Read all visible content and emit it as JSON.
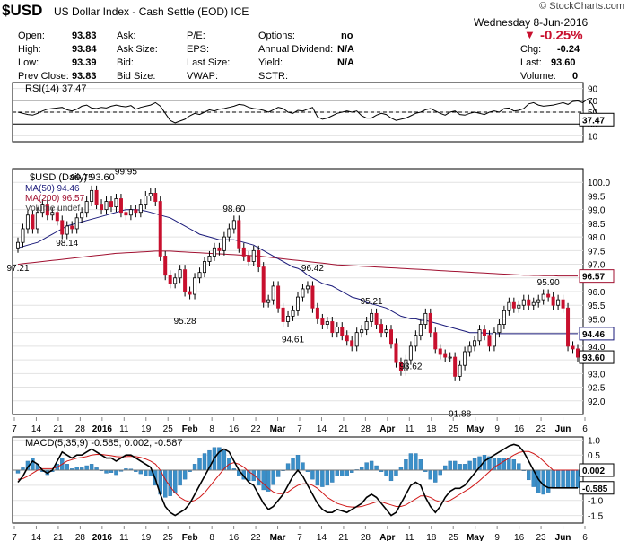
{
  "header": {
    "symbol": "$USD",
    "description": "US Dollar Index - Cash Settle (EOD)",
    "exchange": "ICE",
    "watermark": "© StockCharts.com",
    "date": "Wednesday  8-Jun-2016",
    "change_pct": "-0.25%",
    "open_label": "Open:",
    "open": "93.83",
    "high_label": "High:",
    "high": "93.84",
    "low_label": "Low:",
    "low": "93.39",
    "prevclose_label": "Prev Close:",
    "prevclose": "93.83",
    "ask_label": "Ask:",
    "asksize_label": "Ask Size:",
    "bid_label": "Bid:",
    "bidsize_label": "Bid Size:",
    "pe_label": "P/E:",
    "eps_label": "EPS:",
    "lastsize_label": "Last Size:",
    "vwap_label": "VWAP:",
    "options_label": "Options:",
    "options": "no",
    "div_label": "Annual Dividend:",
    "div": "N/A",
    "yield_label": "Yield:",
    "yield": "N/A",
    "sctr_label": "SCTR:",
    "chg_label": "Chg:",
    "chg": "-0.24",
    "last_label": "Last:",
    "last": "93.60",
    "volume_label": "Volume:",
    "volume": "0"
  },
  "colors": {
    "up": "#ffffff",
    "down": "#c8102e",
    "ma50": "#1a1a7a",
    "ma200": "#a01030",
    "hist": "#3a8fc8",
    "signal": "#d01818"
  },
  "chart_data": [
    {
      "type": "line",
      "panel": "rsi",
      "title": "RSI(14) 37.47",
      "ylim": [
        0,
        100
      ],
      "tick_labels": [
        "10",
        "30",
        "50",
        "70",
        "90"
      ],
      "levels": [
        30,
        50,
        70
      ],
      "last_label": "37.47",
      "values": [
        50,
        48,
        46,
        45,
        48,
        52,
        55,
        56,
        57,
        58,
        54,
        52,
        55,
        60,
        62,
        57,
        56,
        58,
        57,
        60,
        62,
        60,
        59,
        61,
        55,
        58,
        60,
        62,
        66,
        60,
        48,
        36,
        32,
        35,
        38,
        44,
        48,
        46,
        50,
        54,
        52,
        55,
        56,
        58,
        60,
        63,
        62,
        58,
        56,
        55,
        53,
        50,
        54,
        58,
        56,
        50,
        48,
        53,
        52,
        55,
        58,
        42,
        38,
        40,
        44,
        48,
        50,
        52,
        50,
        52,
        44,
        40,
        40,
        45,
        48,
        46,
        40,
        36,
        38,
        40,
        44,
        48,
        50,
        54,
        56,
        52,
        48,
        45,
        50,
        52,
        46,
        45,
        48,
        50,
        48,
        46,
        50,
        52,
        50,
        56,
        57,
        52,
        53,
        56,
        64,
        66,
        62,
        60,
        61,
        62,
        64,
        66,
        63,
        68,
        69,
        66,
        72,
        63,
        44,
        41,
        37.47
      ]
    },
    {
      "type": "candlestick",
      "panel": "price",
      "title": "$USD (Daily) 93.60",
      "legend": [
        "MA(50) 94.46",
        "MA(200) 96.57",
        "Volume undef"
      ],
      "ylim": [
        91.5,
        100.5
      ],
      "tick_labels": [
        "92.0",
        "92.5",
        "93.0",
        "93.5",
        "94.0",
        "94.5",
        "95.0",
        "95.5",
        "96.0",
        "96.5",
        "97.0",
        "97.5",
        "98.0",
        "98.5",
        "99.0",
        "99.5",
        "100.0"
      ],
      "close": [
        97.8,
        98.3,
        98.8,
        98.3,
        98.9,
        99.2,
        98.8,
        98.9,
        98.6,
        98.1,
        98.4,
        98.3,
        98.7,
        98.9,
        99.3,
        99.7,
        99.2,
        99.0,
        99.3,
        99.1,
        99.4,
        98.9,
        98.8,
        99.0,
        98.9,
        99.2,
        99.5,
        99.6,
        99.3,
        97.3,
        96.6,
        96.3,
        96.5,
        96.8,
        96.0,
        95.9,
        96.5,
        96.7,
        97.1,
        97.3,
        97.6,
        97.5,
        98.0,
        98.3,
        98.6,
        97.6,
        97.3,
        97.1,
        97.5,
        96.9,
        95.6,
        95.7,
        96.2,
        95.4,
        94.9,
        95.1,
        95.3,
        95.8,
        96.1,
        96.2,
        95.4,
        95.0,
        94.8,
        94.9,
        94.5,
        94.7,
        94.4,
        94.2,
        94.0,
        94.5,
        94.6,
        94.9,
        95.2,
        94.8,
        94.5,
        94.6,
        94.1,
        93.4,
        93.1,
        93.5,
        94.0,
        94.4,
        94.8,
        95.2,
        94.5,
        93.9,
        93.7,
        93.6,
        93.6,
        92.9,
        93.3,
        93.8,
        94.0,
        94.2,
        94.6,
        94.4,
        94.0,
        94.5,
        94.8,
        95.3,
        95.6,
        95.4,
        95.5,
        95.7,
        95.5,
        95.6,
        95.7,
        95.9,
        95.8,
        95.5,
        95.7,
        95.4,
        94.0,
        93.9,
        93.6
      ],
      "ma50": [
        97.6,
        97.65,
        97.7,
        97.75,
        97.8,
        97.9,
        98.0,
        98.1,
        98.2,
        98.3,
        98.4,
        98.45,
        98.5,
        98.55,
        98.6,
        98.65,
        98.7,
        98.75,
        98.8,
        98.85,
        98.9,
        98.95,
        99.0,
        99.0,
        99.0,
        98.98,
        98.95,
        98.9,
        98.85,
        98.8,
        98.75,
        98.7,
        98.6,
        98.5,
        98.4,
        98.3,
        98.2,
        98.1,
        98.05,
        98.0,
        97.95,
        97.9,
        97.9,
        97.9,
        97.9,
        97.85,
        97.8,
        97.75,
        97.7,
        97.6,
        97.5,
        97.4,
        97.3,
        97.2,
        97.1,
        97.0,
        96.9,
        96.85,
        96.75,
        96.6,
        96.5,
        96.4,
        96.3,
        96.25,
        96.2,
        96.1,
        96.0,
        95.9,
        95.8,
        95.75,
        95.7,
        95.6,
        95.55,
        95.5,
        95.45,
        95.4,
        95.3,
        95.2,
        95.1,
        95.05,
        95.0,
        95.0,
        94.95,
        94.95,
        94.9,
        94.85,
        94.8,
        94.75,
        94.7,
        94.65,
        94.6,
        94.55,
        94.5,
        94.5,
        94.5,
        94.48,
        94.46,
        94.46,
        94.46,
        94.46,
        94.46,
        94.46,
        94.46,
        94.46,
        94.46,
        94.46,
        94.46,
        94.46,
        94.46,
        94.46,
        94.46,
        94.46,
        94.46,
        94.46,
        94.46
      ],
      "ma200": [
        97.0,
        97.02,
        97.04,
        97.06,
        97.08,
        97.1,
        97.12,
        97.14,
        97.16,
        97.18,
        97.2,
        97.22,
        97.24,
        97.26,
        97.28,
        97.3,
        97.32,
        97.34,
        97.36,
        97.38,
        97.4,
        97.41,
        97.42,
        97.43,
        97.44,
        97.45,
        97.46,
        97.47,
        97.48,
        97.48,
        97.48,
        97.48,
        97.47,
        97.46,
        97.45,
        97.44,
        97.43,
        97.42,
        97.41,
        97.4,
        97.39,
        97.38,
        97.37,
        97.36,
        97.35,
        97.34,
        97.33,
        97.32,
        97.31,
        97.3,
        97.28,
        97.26,
        97.24,
        97.22,
        97.2,
        97.18,
        97.16,
        97.14,
        97.12,
        97.1,
        97.08,
        97.06,
        97.04,
        97.02,
        97.0,
        96.98,
        96.97,
        96.96,
        96.95,
        96.94,
        96.93,
        96.92,
        96.91,
        96.9,
        96.89,
        96.88,
        96.87,
        96.86,
        96.85,
        96.84,
        96.83,
        96.82,
        96.81,
        96.8,
        96.79,
        96.78,
        96.77,
        96.76,
        96.75,
        96.74,
        96.73,
        96.72,
        96.71,
        96.7,
        96.69,
        96.68,
        96.67,
        96.66,
        96.65,
        96.64,
        96.63,
        96.62,
        96.61,
        96.6,
        96.6,
        96.59,
        96.59,
        96.58,
        96.58,
        96.58,
        96.57,
        96.57,
        96.57,
        96.57,
        96.57
      ],
      "annotations": [
        {
          "text": "97.21",
          "value": 97.21
        },
        {
          "text": "99.75",
          "value": 99.75
        },
        {
          "text": "98.14",
          "value": 98.14
        },
        {
          "text": "99.95",
          "value": 99.95
        },
        {
          "text": "95.28",
          "value": 95.28
        },
        {
          "text": "98.60",
          "value": 98.6
        },
        {
          "text": "94.61",
          "value": 94.61
        },
        {
          "text": "96.42",
          "value": 96.42
        },
        {
          "text": "95.21",
          "value": 95.21
        },
        {
          "text": "93.62",
          "value": 93.62
        },
        {
          "text": "91.88",
          "value": 91.88
        },
        {
          "text": "95.90",
          "value": 95.9
        }
      ],
      "last_tags": [
        "96.57",
        "94.46",
        "93.60"
      ],
      "x_labels": [
        "7",
        "14",
        "21",
        "28",
        "2016",
        "11",
        "19",
        "25",
        "Feb",
        "8",
        "16",
        "22",
        "Mar",
        "7",
        "14",
        "21",
        "28",
        "Apr",
        "11",
        "18",
        "25",
        "May",
        "9",
        "16",
        "23",
        "Jun",
        "6"
      ]
    },
    {
      "type": "line",
      "panel": "macd",
      "title": "MACD(5,35,9) -0.585, 0.002, -0.587",
      "ylim": [
        -1.75,
        1.1
      ],
      "tick_labels": [
        "-1.5",
        "-1.0",
        "-0.5",
        "0.0",
        "0.5",
        "1.0"
      ],
      "series": [
        {
          "name": "MACD",
          "values": [
            -0.4,
            -0.2,
            0.1,
            0.3,
            0.2,
            0.0,
            -0.1,
            0.0,
            0.3,
            0.6,
            0.5,
            0.4,
            0.5,
            0.5,
            0.6,
            0.7,
            0.6,
            0.5,
            0.4,
            0.4,
            0.3,
            0.4,
            0.5,
            0.5,
            0.4,
            0.3,
            0.2,
            0.1,
            -0.3,
            -0.8,
            -1.2,
            -1.4,
            -1.5,
            -1.4,
            -1.3,
            -1.1,
            -0.8,
            -0.5,
            -0.2,
            0.1,
            0.4,
            0.6,
            0.7,
            0.6,
            0.3,
            0.0,
            -0.2,
            -0.4,
            -0.5,
            -0.8,
            -1.1,
            -1.3,
            -1.2,
            -1.0,
            -0.8,
            -0.5,
            -0.2,
            0.0,
            -0.2,
            -0.5,
            -0.8,
            -1.1,
            -1.3,
            -1.4,
            -1.4,
            -1.3,
            -1.35,
            -1.4,
            -1.3,
            -1.2,
            -1.1,
            -0.9,
            -0.8,
            -0.9,
            -1.1,
            -1.3,
            -1.5,
            -1.4,
            -1.1,
            -0.8,
            -0.5,
            -0.4,
            -0.5,
            -0.9,
            -1.2,
            -1.4,
            -1.2,
            -0.9,
            -0.7,
            -0.6,
            -0.6,
            -0.5,
            -0.3,
            -0.1,
            0.1,
            0.3,
            0.4,
            0.5,
            0.6,
            0.7,
            0.8,
            0.85,
            0.8,
            0.6,
            0.3,
            0.0,
            -0.3,
            -0.5,
            -0.58,
            -0.585,
            -0.585,
            -0.585,
            -0.585,
            -0.585,
            -0.585
          ]
        },
        {
          "name": "Signal",
          "values": [
            -0.3,
            -0.28,
            -0.2,
            -0.1,
            0.0,
            0.05,
            0.05,
            0.05,
            0.1,
            0.2,
            0.3,
            0.35,
            0.4,
            0.42,
            0.45,
            0.5,
            0.52,
            0.52,
            0.5,
            0.48,
            0.45,
            0.44,
            0.45,
            0.46,
            0.45,
            0.42,
            0.37,
            0.3,
            0.2,
            0.0,
            -0.3,
            -0.55,
            -0.75,
            -0.9,
            -1.0,
            -1.05,
            -1.0,
            -0.9,
            -0.75,
            -0.55,
            -0.35,
            -0.15,
            0.05,
            0.2,
            0.25,
            0.2,
            0.1,
            -0.05,
            -0.15,
            -0.3,
            -0.45,
            -0.6,
            -0.72,
            -0.78,
            -0.78,
            -0.72,
            -0.6,
            -0.5,
            -0.45,
            -0.45,
            -0.5,
            -0.6,
            -0.75,
            -0.9,
            -1.0,
            -1.1,
            -1.15,
            -1.2,
            -1.22,
            -1.22,
            -1.2,
            -1.15,
            -1.1,
            -1.05,
            -1.05,
            -1.1,
            -1.15,
            -1.2,
            -1.2,
            -1.15,
            -1.05,
            -0.95,
            -0.85,
            -0.85,
            -0.9,
            -1.0,
            -1.05,
            -1.05,
            -1.0,
            -0.9,
            -0.8,
            -0.7,
            -0.6,
            -0.48,
            -0.35,
            -0.2,
            -0.05,
            0.1,
            0.2,
            0.3,
            0.4,
            0.5,
            0.58,
            0.62,
            0.62,
            0.55,
            0.45,
            0.3,
            0.15,
            0.0,
            0.002,
            0.002,
            0.002,
            0.002,
            0.002
          ]
        }
      ],
      "last_tags": [
        "0.002",
        "-0.585"
      ],
      "x_labels": [
        "7",
        "14",
        "21",
        "28",
        "2016",
        "11",
        "19",
        "25",
        "Feb",
        "8",
        "16",
        "22",
        "Mar",
        "7",
        "14",
        "21",
        "28",
        "Apr",
        "11",
        "18",
        "25",
        "May",
        "9",
        "16",
        "23",
        "Jun",
        "6"
      ]
    }
  ]
}
